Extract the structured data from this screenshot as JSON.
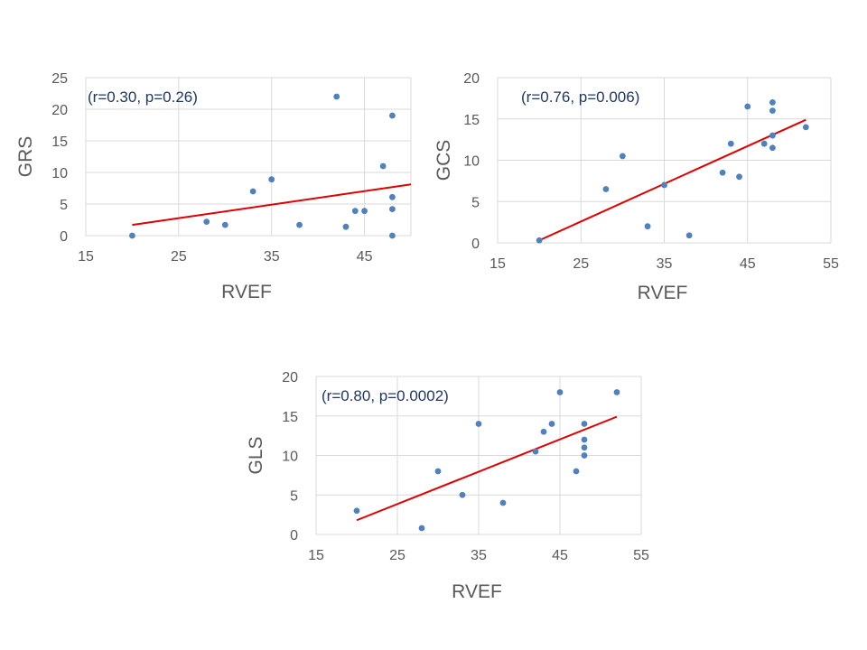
{
  "chart_data": [
    {
      "type": "scatter",
      "xlabel": "RVEF",
      "ylabel": "GRS",
      "annotation": "(r=0.30, p=0.26)",
      "xlim": [
        15,
        50
      ],
      "ylim": [
        0,
        25
      ],
      "xticks": [
        15,
        25,
        35,
        45
      ],
      "yticks": [
        0,
        5,
        10,
        15,
        20,
        25
      ],
      "grid": true,
      "point_color": "#4f81bd",
      "trend_color": "#e00000",
      "points": [
        {
          "x": 20,
          "y": 0
        },
        {
          "x": 28,
          "y": 2.2
        },
        {
          "x": 30,
          "y": 1.7
        },
        {
          "x": 33,
          "y": 7
        },
        {
          "x": 35,
          "y": 8.9
        },
        {
          "x": 38,
          "y": 1.7
        },
        {
          "x": 42,
          "y": 22
        },
        {
          "x": 43,
          "y": 1.4
        },
        {
          "x": 44,
          "y": 3.9
        },
        {
          "x": 45,
          "y": 3.9
        },
        {
          "x": 47,
          "y": 11
        },
        {
          "x": 48,
          "y": 19
        },
        {
          "x": 48,
          "y": 6.1
        },
        {
          "x": 48,
          "y": 4.2
        },
        {
          "x": 48,
          "y": 0
        }
      ],
      "trendline": {
        "x": [
          20,
          50
        ],
        "y": [
          1.7,
          8.1
        ]
      }
    },
    {
      "type": "scatter",
      "xlabel": "RVEF",
      "ylabel": "GCS",
      "annotation": "(r=0.76, p=0.006)",
      "xlim": [
        15,
        55
      ],
      "ylim": [
        0,
        20
      ],
      "xticks": [
        15,
        25,
        35,
        45,
        55
      ],
      "yticks": [
        0,
        5,
        10,
        15,
        20
      ],
      "grid": true,
      "point_color": "#4f81bd",
      "trend_color": "#e00000",
      "points": [
        {
          "x": 20,
          "y": 0.3
        },
        {
          "x": 28,
          "y": 6.5
        },
        {
          "x": 30,
          "y": 10.5
        },
        {
          "x": 33,
          "y": 2
        },
        {
          "x": 35,
          "y": 7
        },
        {
          "x": 38,
          "y": 0.9
        },
        {
          "x": 42,
          "y": 8.5
        },
        {
          "x": 43,
          "y": 12
        },
        {
          "x": 44,
          "y": 8
        },
        {
          "x": 45,
          "y": 16.5
        },
        {
          "x": 47,
          "y": 12
        },
        {
          "x": 48,
          "y": 17
        },
        {
          "x": 48,
          "y": 16
        },
        {
          "x": 48,
          "y": 13
        },
        {
          "x": 48,
          "y": 11.5
        },
        {
          "x": 52,
          "y": 14
        }
      ],
      "trendline": {
        "x": [
          20,
          52
        ],
        "y": [
          0.3,
          14.9
        ]
      }
    },
    {
      "type": "scatter",
      "xlabel": "RVEF",
      "ylabel": "GLS",
      "annotation": "(r=0.80, p=0.0002)",
      "xlim": [
        15,
        55
      ],
      "ylim": [
        0,
        20
      ],
      "xticks": [
        15,
        25,
        35,
        45,
        55
      ],
      "yticks": [
        0,
        5,
        10,
        15,
        20
      ],
      "grid": true,
      "point_color": "#4f81bd",
      "trend_color": "#e00000",
      "points": [
        {
          "x": 20,
          "y": 3
        },
        {
          "x": 28,
          "y": 0.8
        },
        {
          "x": 30,
          "y": 8
        },
        {
          "x": 33,
          "y": 5
        },
        {
          "x": 35,
          "y": 14
        },
        {
          "x": 38,
          "y": 4
        },
        {
          "x": 42,
          "y": 10.5
        },
        {
          "x": 43,
          "y": 13
        },
        {
          "x": 44,
          "y": 14
        },
        {
          "x": 45,
          "y": 18
        },
        {
          "x": 47,
          "y": 8
        },
        {
          "x": 48,
          "y": 14
        },
        {
          "x": 48,
          "y": 12
        },
        {
          "x": 48,
          "y": 11
        },
        {
          "x": 48,
          "y": 10
        },
        {
          "x": 52,
          "y": 18
        }
      ],
      "trendline": {
        "x": [
          20,
          52
        ],
        "y": [
          1.8,
          14.9
        ]
      }
    }
  ]
}
